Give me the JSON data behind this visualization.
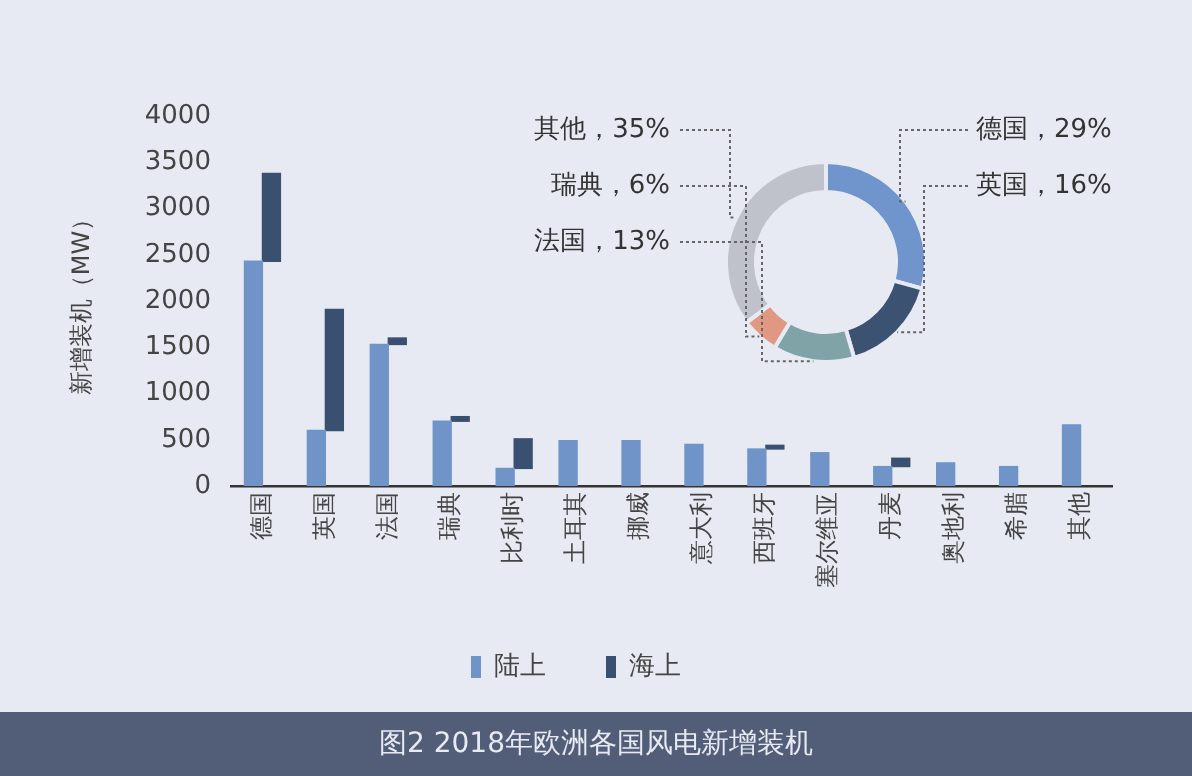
{
  "chart_data": [
    {
      "type": "bar",
      "title": "图2 2018年欧洲各国风电新增装机",
      "ylabel": "新增装机（MW）",
      "categories": [
        "德国",
        "英国",
        "法国",
        "瑞典",
        "比利时",
        "土耳其",
        "挪威",
        "意大利",
        "西班牙",
        "塞尔维亚",
        "丹麦",
        "奥地利",
        "希腊",
        "其他"
      ],
      "series": [
        {
          "name": "陆上",
          "color": "#7094c8",
          "values": [
            2430,
            600,
            1530,
            700,
            190,
            490,
            490,
            450,
            400,
            360,
            210,
            250,
            210,
            660
          ]
        },
        {
          "name": "海上",
          "color": "#3a5070",
          "base": [
            2430,
            600,
            1530,
            700,
            190,
            null,
            null,
            null,
            400,
            null,
            210,
            null,
            null,
            null
          ],
          "values": [
            950,
            1310,
            70,
            50,
            320,
            null,
            null,
            null,
            40,
            null,
            90,
            null,
            null,
            null
          ]
        }
      ],
      "ylim": [
        0,
        4000
      ],
      "yticks": [
        0,
        500,
        1000,
        1500,
        2000,
        2500,
        3000,
        3500,
        4000
      ],
      "grid": false,
      "legend": "bottom"
    },
    {
      "type": "donut",
      "categories": [
        "德国",
        "英国",
        "法国",
        "瑞典",
        "其他"
      ],
      "values": [
        29,
        16,
        13,
        6,
        35
      ],
      "colors": [
        "#6f95cc",
        "#3b5273",
        "#7fa3a6",
        "#e09882",
        "#bfc2ca"
      ],
      "value_labels": [
        "29%",
        "16%",
        "13%",
        "6%",
        "35%"
      ]
    }
  ]
}
